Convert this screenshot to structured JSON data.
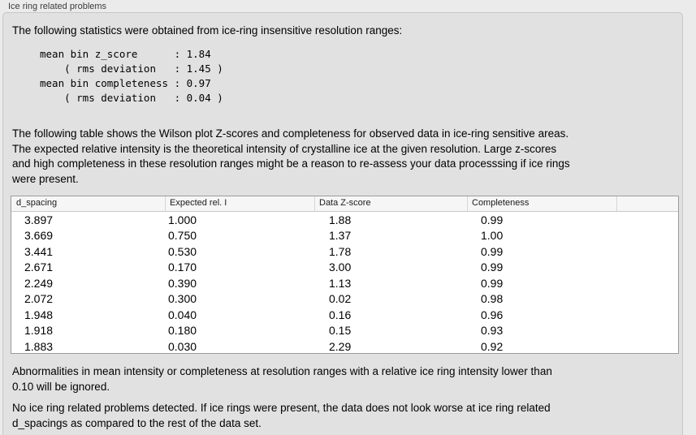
{
  "panel": {
    "title": "Ice ring related problems"
  },
  "intro_text": "The following statistics were obtained from ice-ring insensitive resolution ranges:",
  "stats_block": [
    "mean bin z_score      : 1.84",
    "    ( rms deviation   : 1.45 )",
    "mean bin completeness : 0.97",
    "    ( rms deviation   : 0.04 )"
  ],
  "description_lines": [
    "The following table shows the Wilson plot Z-scores and completeness for observed data in ice-ring sensitive areas.",
    "The expected relative intensity is the theoretical intensity of crystalline ice at the given resolution. Large z-scores",
    "and high completeness in these resolution ranges might be a reason to re-assess your data processsing if ice rings",
    "were present."
  ],
  "table": {
    "columns": [
      "d_spacing",
      "Expected rel. I",
      "Data Z-score",
      "Completeness"
    ],
    "rows": [
      [
        "3.897",
        "1.000",
        "1.88",
        "0.99"
      ],
      [
        "3.669",
        "0.750",
        "1.37",
        "1.00"
      ],
      [
        "3.441",
        "0.530",
        "1.78",
        "0.99"
      ],
      [
        "2.671",
        "0.170",
        "3.00",
        "0.99"
      ],
      [
        "2.249",
        "0.390",
        "1.13",
        "0.99"
      ],
      [
        "2.072",
        "0.300",
        "0.02",
        "0.98"
      ],
      [
        "1.948",
        "0.040",
        "0.16",
        "0.96"
      ],
      [
        "1.918",
        "0.180",
        "0.15",
        "0.93"
      ],
      [
        "1.883",
        "0.030",
        "2.29",
        "0.92"
      ]
    ]
  },
  "note_lines": [
    "Abnormalities in mean intensity or completeness at resolution ranges with a relative ice ring intensity lower than",
    "0.10 will be ignored."
  ],
  "conclusion_lines": [
    "No ice ring related problems detected. If ice rings were present, the data does not look worse at ice ring related",
    "d_spacings as compared to the rest of the data set."
  ],
  "colors": {
    "page_bg": "#ebebeb",
    "panel_bg": "#e1e1e1",
    "table_bg": "#ffffff",
    "table_header_bg": "#f6f6f6"
  }
}
